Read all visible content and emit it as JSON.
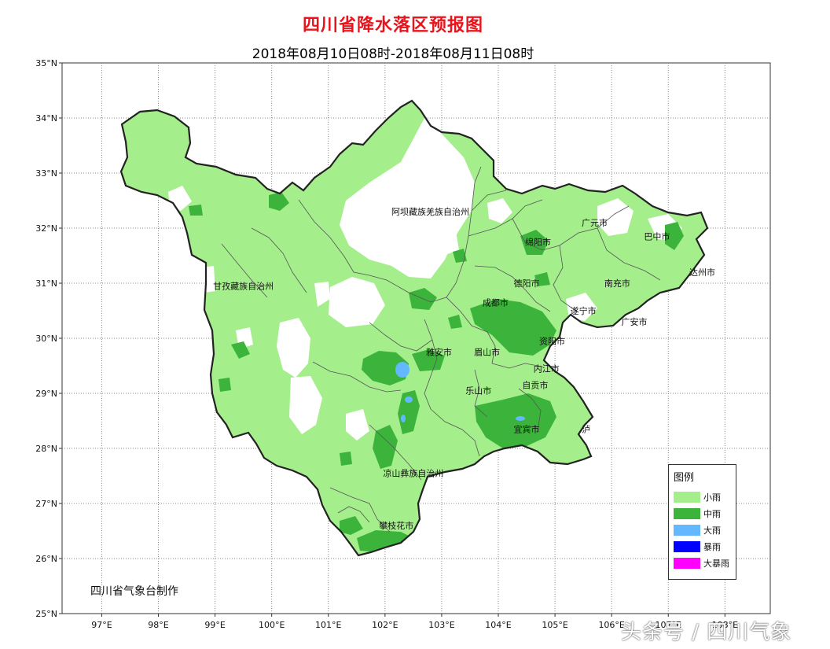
{
  "title": "四川省降水落区预报图",
  "subtitle": "2018年08月10日08时-2018年08月11日08时",
  "credit": "四川省气象台制作",
  "watermark": "头条号 / 四川气象",
  "axes": {
    "lat_ticks": [
      "35°N",
      "34°N",
      "33°N",
      "32°N",
      "31°N",
      "30°N",
      "29°N",
      "28°N",
      "27°N",
      "26°N",
      "25°N"
    ],
    "lon_ticks": [
      "97°E",
      "98°E",
      "99°E",
      "100°E",
      "101°E",
      "102°E",
      "103°E",
      "104°E",
      "105°E",
      "106°E",
      "107°E",
      "108°E"
    ],
    "lat_range": [
      25,
      35
    ],
    "lon_range": [
      96.3,
      108.8
    ],
    "grid": true
  },
  "colors": {
    "light_rain": "#a5ee8c",
    "moderate_rain": "#3cb43c",
    "heavy_rain": "#63b8ff",
    "rainstorm": "#0000ff",
    "heavy_rainstorm": "#ff00ff"
  },
  "legend": {
    "title": "图例",
    "items": [
      {
        "label": "小雨",
        "color": "#a5ee8c"
      },
      {
        "label": "中雨",
        "color": "#3cb43c"
      },
      {
        "label": "大雨",
        "color": "#63b8ff"
      },
      {
        "label": "暴雨",
        "color": "#0000ff"
      },
      {
        "label": "大暴雨",
        "color": "#ff00ff"
      }
    ]
  },
  "regions": [
    {
      "name": "阿坝藏族羌族自治州",
      "lon": 102.8,
      "lat": 32.3
    },
    {
      "name": "甘孜藏族自治州",
      "lon": 99.5,
      "lat": 30.95
    },
    {
      "name": "凉山彝族自治州",
      "lon": 102.5,
      "lat": 27.55
    },
    {
      "name": "广元市",
      "lon": 105.7,
      "lat": 32.1
    },
    {
      "name": "巴中市",
      "lon": 106.8,
      "lat": 31.85
    },
    {
      "name": "绵阳市",
      "lon": 104.7,
      "lat": 31.75
    },
    {
      "name": "达州市",
      "lon": 107.6,
      "lat": 31.2
    },
    {
      "name": "南充市",
      "lon": 106.1,
      "lat": 31.0
    },
    {
      "name": "德阳市",
      "lon": 104.5,
      "lat": 31.0
    },
    {
      "name": "成都市",
      "lon": 103.95,
      "lat": 30.65
    },
    {
      "name": "遂宁市",
      "lon": 105.5,
      "lat": 30.5
    },
    {
      "name": "广安市",
      "lon": 106.4,
      "lat": 30.3
    },
    {
      "name": "资阳市",
      "lon": 104.95,
      "lat": 29.95
    },
    {
      "name": "雅安市",
      "lon": 102.95,
      "lat": 29.75
    },
    {
      "name": "眉山市",
      "lon": 103.8,
      "lat": 29.75
    },
    {
      "name": "内江市",
      "lon": 104.85,
      "lat": 29.45
    },
    {
      "name": "自贡市",
      "lon": 104.65,
      "lat": 29.15
    },
    {
      "name": "乐山市",
      "lon": 103.65,
      "lat": 29.05
    },
    {
      "name": "宜宾市",
      "lon": 104.5,
      "lat": 28.35
    },
    {
      "name": "泸",
      "lon": 105.55,
      "lat": 28.35
    },
    {
      "name": "攀枝花市",
      "lon": 102.2,
      "lat": 26.6
    }
  ]
}
